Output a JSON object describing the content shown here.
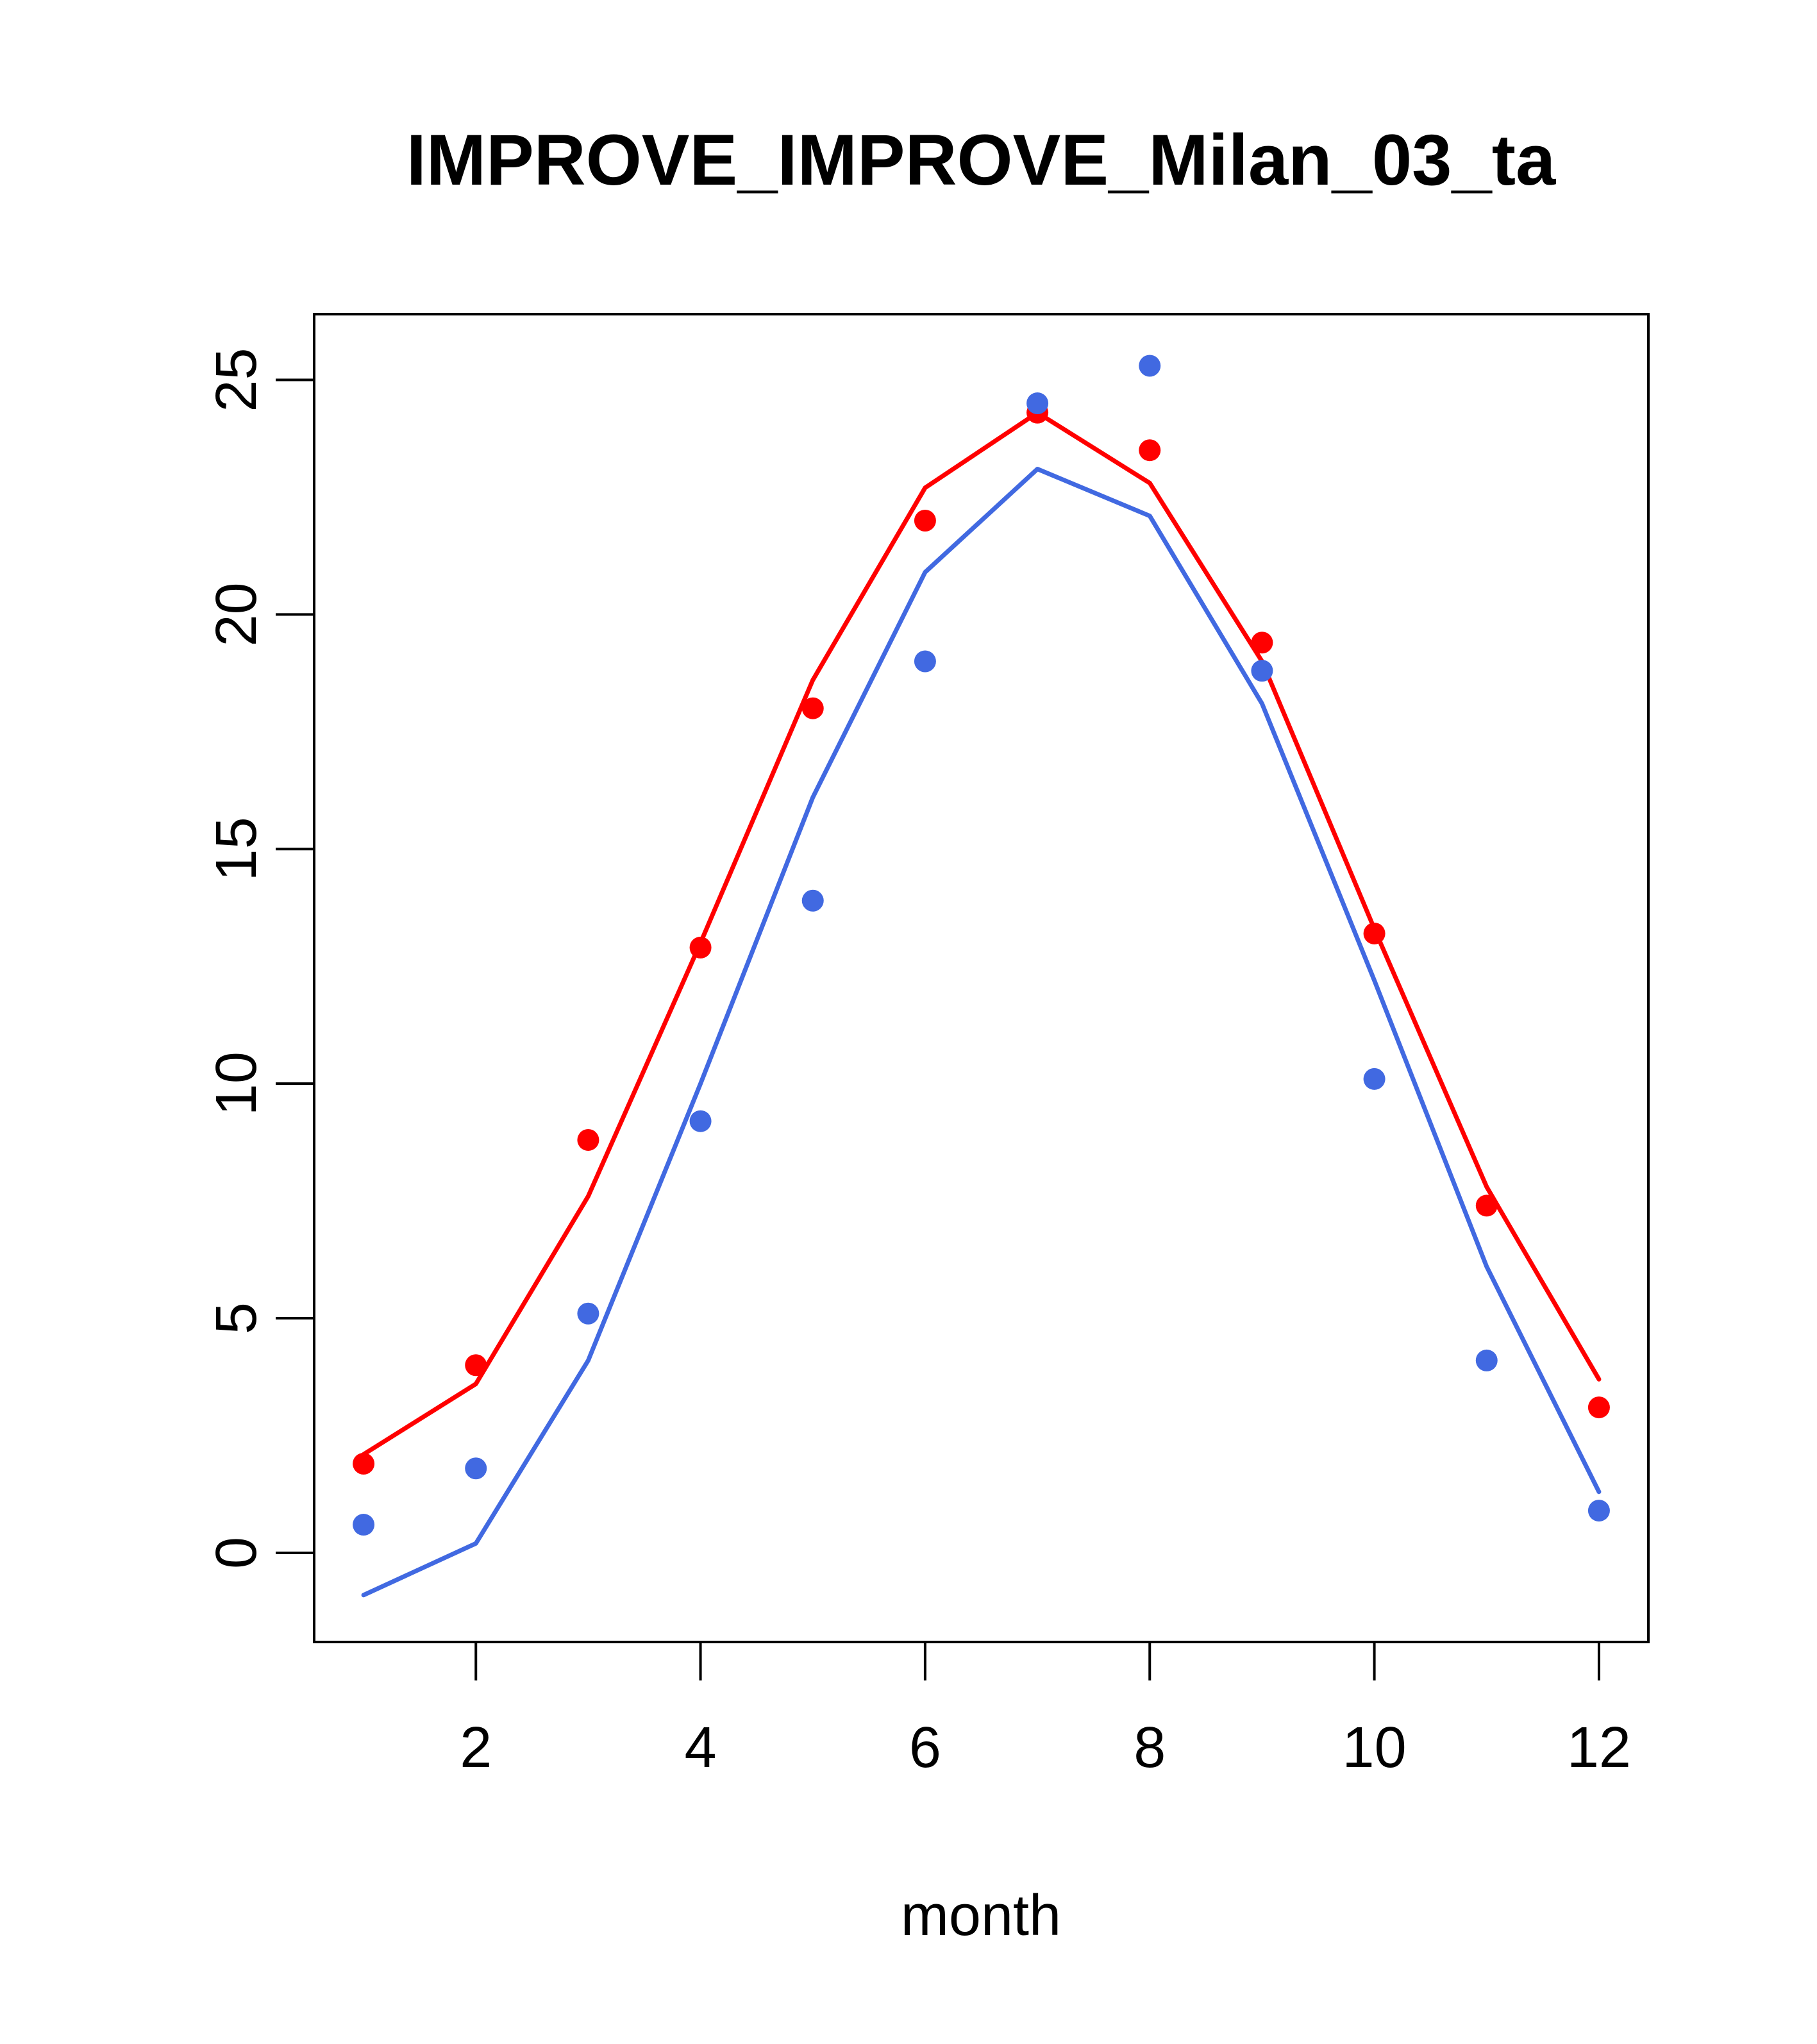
{
  "chart_data": {
    "type": "line",
    "title": "IMPROVE_IMPROVE_Milan_03_ta",
    "xlabel": "month",
    "ylabel": "",
    "xlim": [
      0.56,
      12.44
    ],
    "ylim": [
      -1.9,
      26.4
    ],
    "x_ticks": [
      2,
      4,
      6,
      8,
      10,
      12
    ],
    "y_ticks": [
      0,
      5,
      10,
      15,
      20,
      25
    ],
    "grid": false,
    "legend": "none",
    "x": [
      1,
      2,
      3,
      4,
      5,
      6,
      7,
      8,
      9,
      10,
      11,
      12
    ],
    "series": [
      {
        "color": "#FF0000",
        "line": [
          2.1,
          3.6,
          7.6,
          13.0,
          18.6,
          22.7,
          24.3,
          22.8,
          19.0,
          13.3,
          7.8,
          3.7
        ],
        "points": [
          1.9,
          4.0,
          8.8,
          12.9,
          18.0,
          22.0,
          24.3,
          23.5,
          19.4,
          13.2,
          7.4,
          3.1
        ]
      },
      {
        "color": "#4169E1",
        "line": [
          -0.9,
          0.2,
          4.1,
          10.0,
          16.1,
          20.9,
          23.1,
          22.1,
          18.1,
          12.2,
          6.1,
          1.3
        ],
        "points": [
          0.6,
          1.8,
          5.1,
          9.2,
          13.9,
          19.0,
          24.5,
          25.3,
          18.8,
          10.1,
          4.1,
          0.9
        ]
      }
    ]
  }
}
